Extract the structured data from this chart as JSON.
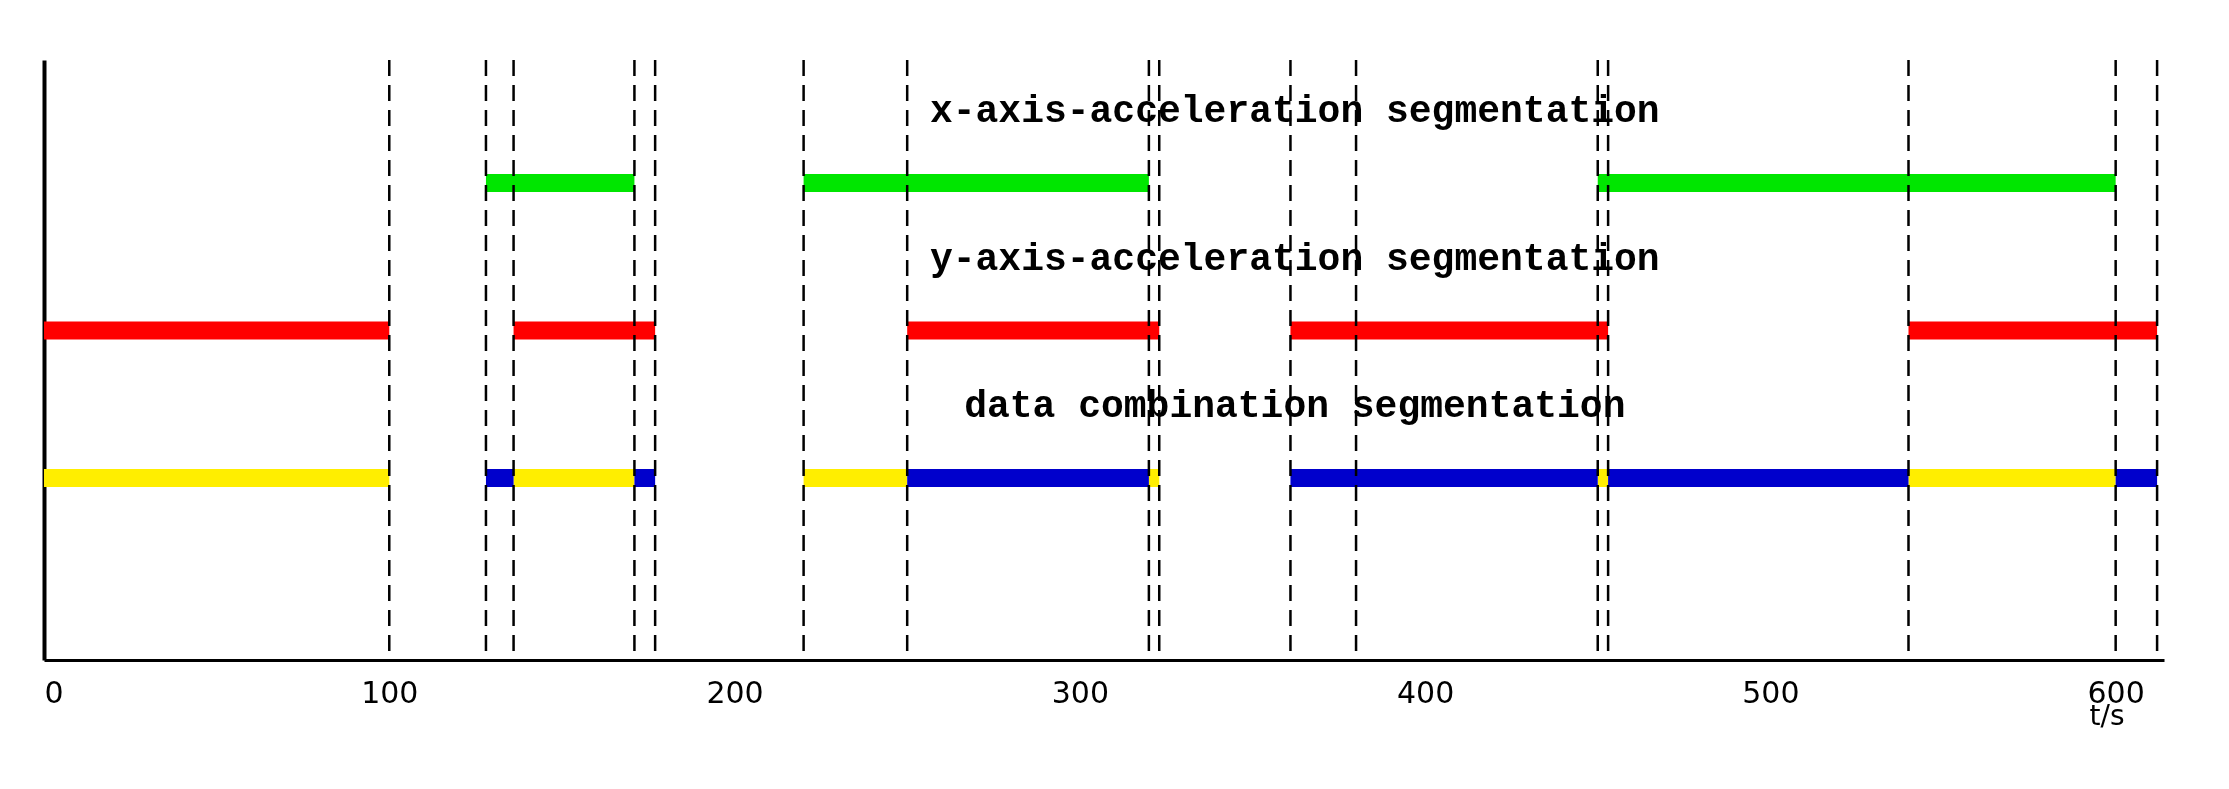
{
  "chart_data": {
    "type": "bar",
    "orientation": "horizontal",
    "categories": [
      null,
      null,
      null
    ],
    "xlabel": "t/s",
    "xlim": [
      0,
      614
    ],
    "xticks": [
      0,
      100,
      200,
      300,
      400,
      500,
      600
    ],
    "tick_labels": "x",
    "annotations": [
      "x-axis-acceleration segmentation",
      "y-axis-acceleration segmentation",
      "data combination segmentation"
    ],
    "series": [
      {
        "color": "#00e600",
        "base": [
          128,
          null,
          null
        ],
        "values": [
          43,
          null,
          null
        ]
      },
      {
        "color": "#00e600",
        "base": [
          220,
          null,
          null
        ],
        "values": [
          100,
          null,
          null
        ]
      },
      {
        "color": "#00e600",
        "base": [
          450,
          null,
          null
        ],
        "values": [
          150,
          null,
          null
        ]
      },
      {
        "color": "#ff0000",
        "base": [
          null,
          0,
          null
        ],
        "values": [
          null,
          100,
          null
        ]
      },
      {
        "color": "#ff0000",
        "base": [
          null,
          136,
          null
        ],
        "values": [
          null,
          41,
          null
        ]
      },
      {
        "color": "#ff0000",
        "base": [
          null,
          250,
          null
        ],
        "values": [
          null,
          73,
          null
        ]
      },
      {
        "color": "#ff0000",
        "base": [
          null,
          361,
          null
        ],
        "values": [
          null,
          92,
          null
        ]
      },
      {
        "color": "#ff0000",
        "base": [
          null,
          540,
          null
        ],
        "values": [
          null,
          72,
          null
        ]
      },
      {
        "color": "#ffee00",
        "base": [
          null,
          null,
          0
        ],
        "values": [
          null,
          null,
          100
        ]
      },
      {
        "color": "#ffee00",
        "base": [
          null,
          null,
          136
        ],
        "values": [
          null,
          null,
          35
        ]
      },
      {
        "color": "#ffee00",
        "base": [
          null,
          null,
          220
        ],
        "values": [
          null,
          null,
          30
        ]
      },
      {
        "color": "#ffee00",
        "base": [
          null,
          null,
          320
        ],
        "values": [
          null,
          null,
          3
        ]
      },
      {
        "color": "#ffee00",
        "base": [
          null,
          null,
          450
        ],
        "values": [
          null,
          null,
          3
        ]
      },
      {
        "color": "#ffee00",
        "base": [
          null,
          null,
          540
        ],
        "values": [
          null,
          null,
          60
        ]
      },
      {
        "color": "#0000cc",
        "base": [
          null,
          null,
          128
        ],
        "values": [
          null,
          null,
          8
        ]
      },
      {
        "color": "#0000cc",
        "base": [
          null,
          null,
          171
        ],
        "values": [
          null,
          null,
          6
        ]
      },
      {
        "color": "#0000cc",
        "base": [
          null,
          null,
          250
        ],
        "values": [
          null,
          null,
          70
        ]
      },
      {
        "color": "#0000cc",
        "base": [
          null,
          null,
          361
        ],
        "values": [
          null,
          null,
          89
        ]
      },
      {
        "color": "#0000cc",
        "base": [
          null,
          null,
          453
        ],
        "values": [
          null,
          null,
          87
        ]
      },
      {
        "color": "#0000cc",
        "base": [
          null,
          null,
          600
        ],
        "values": [
          null,
          null,
          12
        ]
      }
    ],
    "ref_lines": [
      {
        "axis": "x",
        "value": 100,
        "line_style": "dashed"
      },
      {
        "axis": "x",
        "value": 128,
        "line_style": "dashed"
      },
      {
        "axis": "x",
        "value": 136,
        "line_style": "dashed"
      },
      {
        "axis": "x",
        "value": 171,
        "line_style": "dashed"
      },
      {
        "axis": "x",
        "value": 177,
        "line_style": "dashed"
      },
      {
        "axis": "x",
        "value": 220,
        "line_style": "dashed"
      },
      {
        "axis": "x",
        "value": 250,
        "line_style": "dashed"
      },
      {
        "axis": "x",
        "value": 320,
        "line_style": "dashed"
      },
      {
        "axis": "x",
        "value": 323,
        "line_style": "dashed"
      },
      {
        "axis": "x",
        "value": 361,
        "line_style": "dashed"
      },
      {
        "axis": "x",
        "value": 380,
        "line_style": "dashed"
      },
      {
        "axis": "x",
        "value": 450,
        "line_style": "dashed"
      },
      {
        "axis": "x",
        "value": 453,
        "line_style": "dashed"
      },
      {
        "axis": "x",
        "value": 540,
        "line_style": "dashed"
      },
      {
        "axis": "x",
        "value": 600,
        "line_style": "dashed"
      },
      {
        "axis": "x",
        "value": 612,
        "line_style": "dashed"
      }
    ]
  }
}
